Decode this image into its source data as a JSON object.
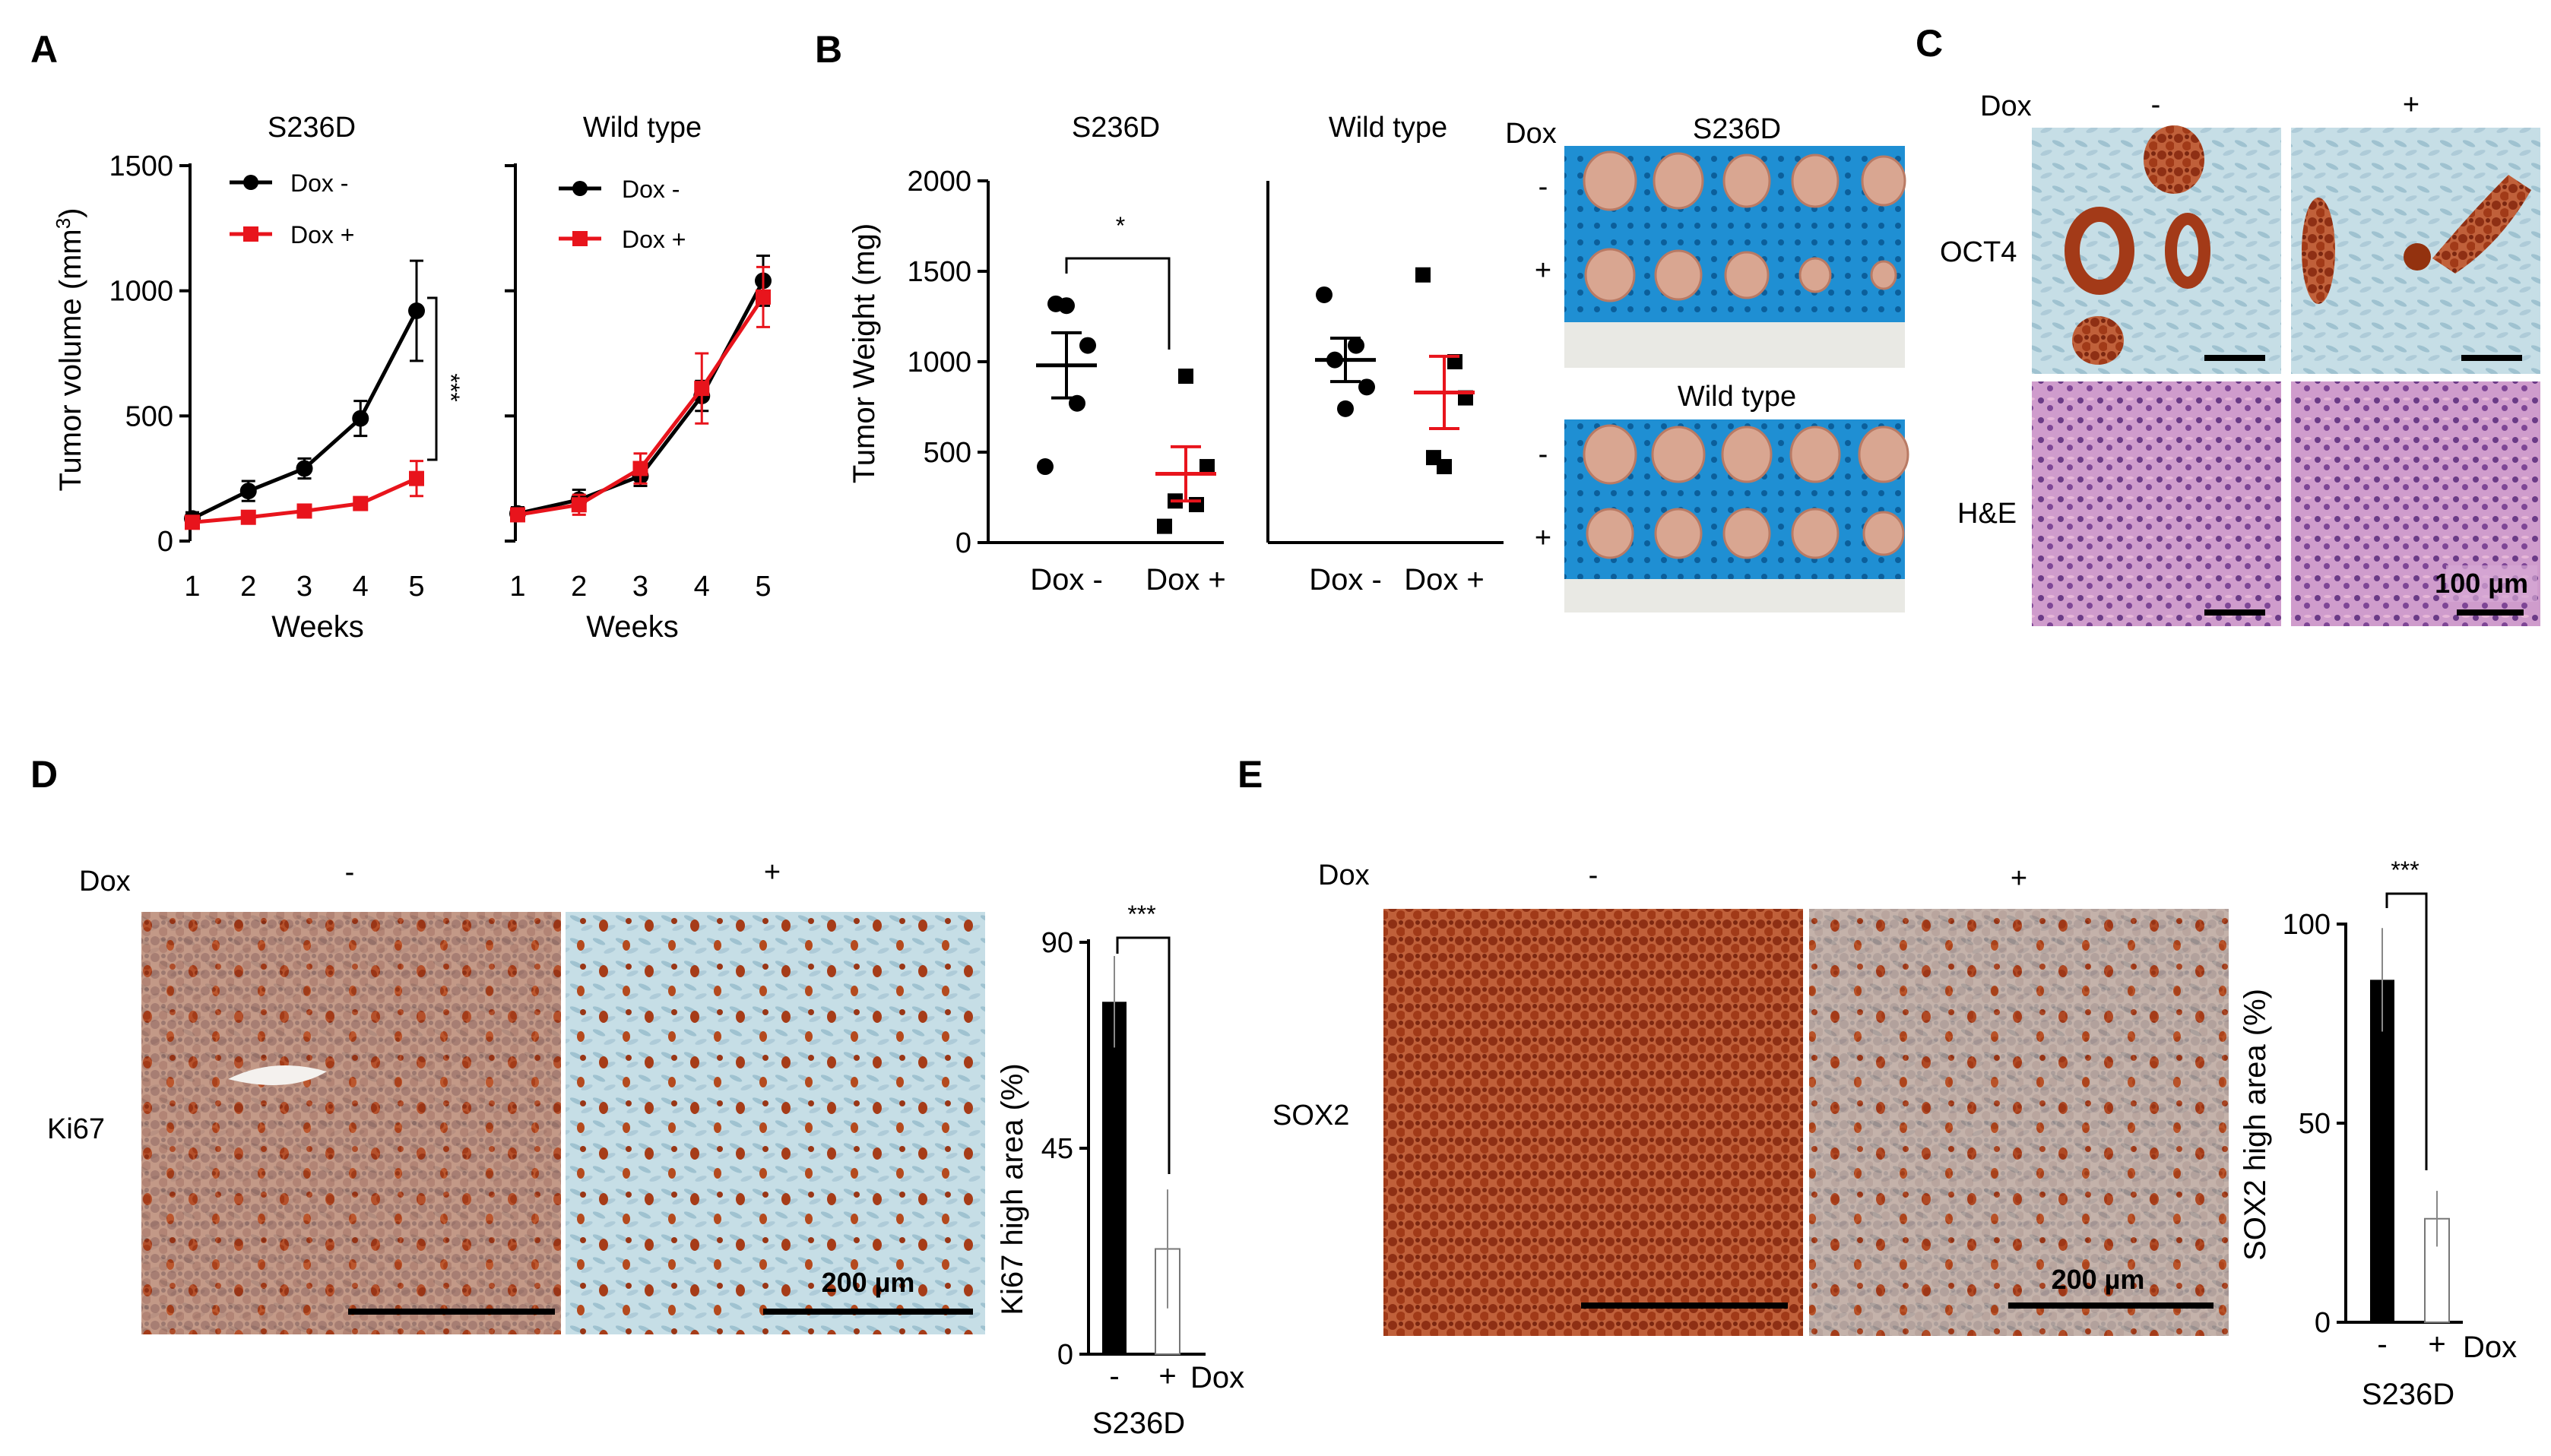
{
  "panels": {
    "A": "A",
    "B": "B",
    "C": "C",
    "D": "D",
    "E": "E"
  },
  "colors": {
    "black": "#000000",
    "red": "#e8141c",
    "brown": "#a4441c",
    "blue_bg": "#c3dde6",
    "he_bg": "#c28ac0",
    "ruler_blue": "#2f94d4"
  },
  "chart_data": [
    {
      "id": "A-left",
      "type": "line",
      "title": "S236D",
      "xlabel": "Weeks",
      "ylabel": "Tumor volume (mm³)",
      "ylabel_main": "Tumor volume (mm",
      "ylabel_sup": "3",
      "ylabel_close": ")",
      "x": [
        1,
        2,
        3,
        4,
        5
      ],
      "xlim": [
        1,
        5
      ],
      "ylim": [
        0,
        1500
      ],
      "yticks": [
        0,
        500,
        1000,
        1500
      ],
      "series": [
        {
          "name": "Dox -",
          "color": "#000000",
          "marker": "circle",
          "values": [
            90,
            200,
            290,
            490,
            920
          ],
          "err": [
            25,
            40,
            40,
            70,
            200
          ]
        },
        {
          "name": "Dox +",
          "color": "#e8141c",
          "marker": "square",
          "values": [
            75,
            95,
            120,
            150,
            250
          ],
          "err": [
            15,
            15,
            25,
            20,
            70
          ]
        }
      ],
      "significance": "***"
    },
    {
      "id": "A-right",
      "type": "line",
      "title": "Wild type",
      "xlabel": "Weeks",
      "x": [
        1,
        2,
        3,
        4,
        5
      ],
      "xlim": [
        1,
        5
      ],
      "ylim": [
        0,
        1500
      ],
      "yticks": [
        0,
        500,
        1000,
        1500
      ],
      "series": [
        {
          "name": "Dox -",
          "color": "#000000",
          "marker": "circle",
          "values": [
            110,
            165,
            260,
            580,
            1040
          ],
          "err": [
            25,
            40,
            40,
            60,
            100
          ]
        },
        {
          "name": "Dox +",
          "color": "#e8141c",
          "marker": "square",
          "values": [
            105,
            145,
            290,
            610,
            975
          ],
          "err": [
            25,
            40,
            60,
            140,
            120
          ]
        }
      ]
    },
    {
      "id": "B-left",
      "type": "scatter",
      "title": "S236D",
      "ylabel": "Tumor Weight (mg)",
      "categories": [
        "Dox -",
        "Dox +"
      ],
      "ylim": [
        0,
        2000
      ],
      "yticks": [
        0,
        500,
        1000,
        1500,
        2000
      ],
      "groups": [
        {
          "name": "Dox -",
          "marker": "circle",
          "color": "#000000",
          "points": [
            420,
            770,
            1090,
            1320,
            1310
          ],
          "mean": 980,
          "sem": 180
        },
        {
          "name": "Dox +",
          "marker": "square",
          "color": "#000000",
          "points": [
            90,
            210,
            420,
            230,
            920
          ],
          "mean": 380,
          "sem": 150
        }
      ],
      "significance": "*"
    },
    {
      "id": "B-right",
      "type": "scatter",
      "title": "Wild type",
      "categories": [
        "Dox -",
        "Dox +"
      ],
      "ylim": [
        0,
        2000
      ],
      "groups": [
        {
          "name": "Dox -",
          "marker": "circle",
          "color": "#000000",
          "points": [
            1370,
            1090,
            860,
            1010,
            740
          ],
          "mean": 1010,
          "sem": 120
        },
        {
          "name": "Dox +",
          "marker": "square",
          "color": "#000000",
          "points": [
            1480,
            1000,
            800,
            470,
            420
          ],
          "mean": 830,
          "sem": 200
        }
      ]
    },
    {
      "id": "D-bar",
      "type": "bar",
      "ylabel": "Ki67 high area (%)",
      "categories": [
        "-",
        "+"
      ],
      "values": [
        77,
        23
      ],
      "err": [
        10,
        13
      ],
      "ylim": [
        0,
        90
      ],
      "yticks": [
        0,
        45,
        90
      ],
      "xlabel": "S236D",
      "xsuffix": "Dox",
      "significance": "***"
    },
    {
      "id": "E-bar",
      "type": "bar",
      "ylabel": "SOX2  high area (%)",
      "categories": [
        "-",
        "+"
      ],
      "values": [
        86,
        26
      ],
      "err": [
        13,
        7
      ],
      "ylim": [
        0,
        100
      ],
      "yticks": [
        0,
        50,
        100
      ],
      "xlabel": "S236D",
      "xsuffix": "Dox",
      "significance": "***"
    }
  ],
  "photos": {
    "B": {
      "dox": "Dox",
      "top_title": "S236D",
      "bottom_title": "Wild type",
      "minus": "-",
      "plus": "+"
    },
    "C": {
      "dox": "Dox",
      "minus": "-",
      "plus": "+",
      "row1": "OCT4",
      "row2": "H&E",
      "scale": "100 µm"
    },
    "D": {
      "dox": "Dox",
      "minus": "-",
      "plus": "+",
      "row": "Ki67",
      "scale": "200 µm"
    },
    "E": {
      "dox": "Dox",
      "minus": "-",
      "plus": "+",
      "row": "SOX2",
      "scale": "200 µm"
    }
  }
}
